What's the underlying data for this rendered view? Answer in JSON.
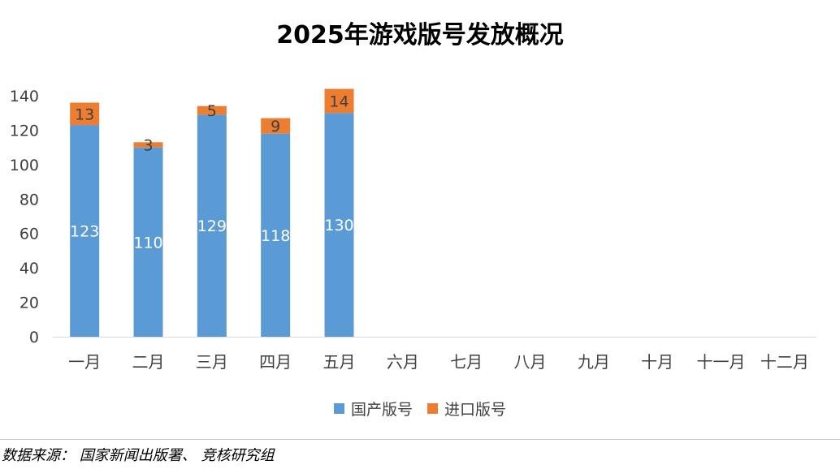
{
  "colors": {
    "domestic": "#5B9BD5",
    "imported": "#ED7D31",
    "axis_text": "#404040"
  },
  "chart_data": {
    "type": "bar",
    "stacked": true,
    "title": "2025年游戏版号发放概况",
    "categories": [
      "一月",
      "二月",
      "三月",
      "四月",
      "五月",
      "六月",
      "七月",
      "八月",
      "九月",
      "十月",
      "十一月",
      "十二月"
    ],
    "series": [
      {
        "name": "国产版号",
        "values": [
          123,
          110,
          129,
          118,
          130,
          null,
          null,
          null,
          null,
          null,
          null,
          null
        ]
      },
      {
        "name": "进口版号",
        "values": [
          13,
          3,
          5,
          9,
          14,
          null,
          null,
          null,
          null,
          null,
          null,
          null
        ]
      }
    ],
    "ylim": [
      0,
      140
    ],
    "yticks": [
      0,
      20,
      40,
      60,
      80,
      100,
      120,
      140
    ],
    "xlabel": "",
    "ylabel": "",
    "grid": false,
    "legend_position": "bottom"
  },
  "footer": {
    "source": "数据来源： 国家新闻出版署、 竞核研究组"
  }
}
